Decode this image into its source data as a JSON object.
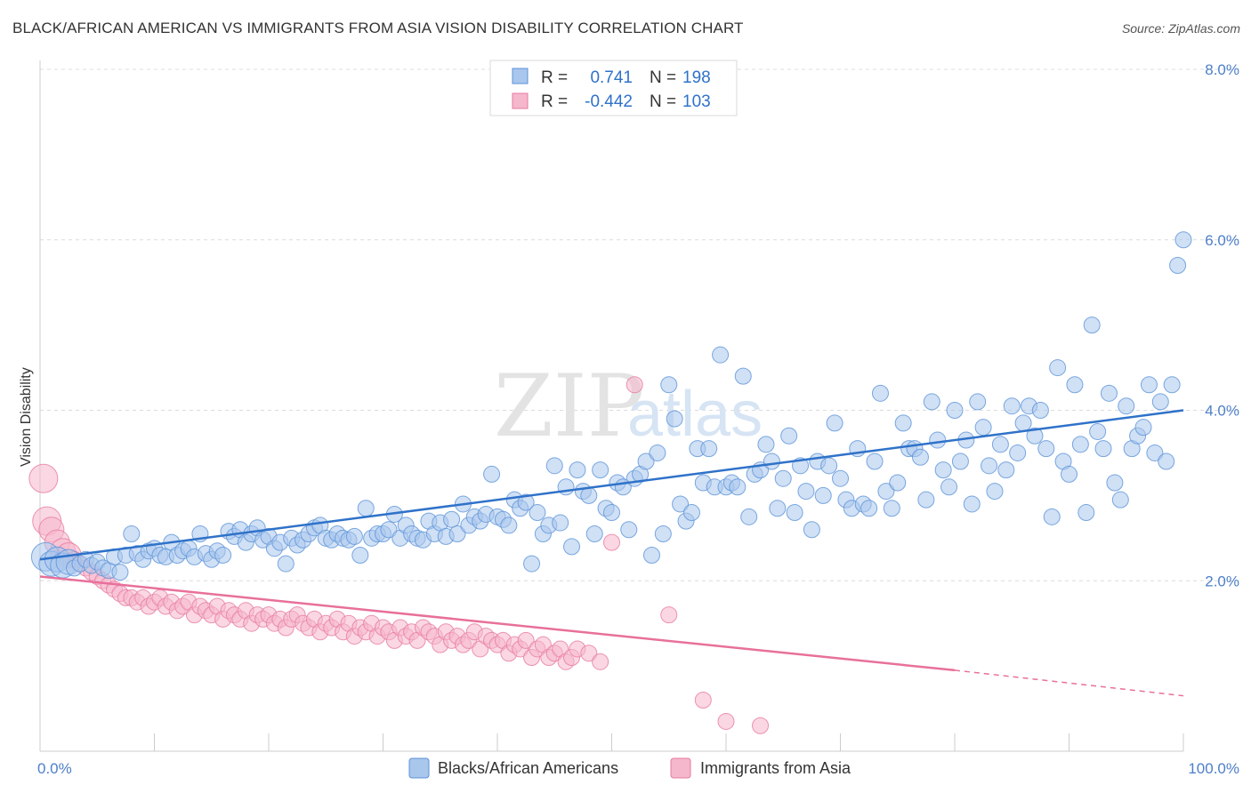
{
  "title": "BLACK/AFRICAN AMERICAN VS IMMIGRANTS FROM ASIA VISION DISABILITY CORRELATION CHART",
  "source": "Source: ZipAtlas.com",
  "watermark": {
    "zip": "ZIP",
    "atlas": "atlas"
  },
  "colors": {
    "blue": "#5b93d8",
    "blue_fill": "#a9c6ec",
    "blue_line": "#2f72c9",
    "pink": "#e77aa0",
    "pink_fill": "#f5b7cc",
    "pink_line": "#e8709a",
    "tick_text": "#4d7fc8"
  },
  "chart_data": {
    "type": "scatter",
    "title": "BLACK/AFRICAN AMERICAN VS IMMIGRANTS FROM ASIA VISION DISABILITY CORRELATION CHART",
    "xlabel": "",
    "ylabel": "Vision Disability",
    "xlim": [
      0,
      100
    ],
    "ylim": [
      0,
      8
    ],
    "x_tick_labels": [
      "0.0%",
      "100.0%"
    ],
    "y_ticks": [
      2,
      4,
      6,
      8
    ],
    "y_tick_labels": [
      "2.0%",
      "4.0%",
      "6.0%",
      "8.0%"
    ],
    "grid": true,
    "legend_top": {
      "r_label": "R =",
      "n_label": "N =",
      "entries": [
        {
          "r": "0.741",
          "n": "198"
        },
        {
          "r": "-0.442",
          "n": "103"
        }
      ]
    },
    "series": [
      {
        "name": "Blacks/African Americans",
        "color": "#5b93d8",
        "trend": {
          "x": [
            0,
            100
          ],
          "y": [
            2.25,
            4.0
          ]
        },
        "points": [
          [
            0.5,
            2.28
          ],
          [
            1,
            2.2
          ],
          [
            1.5,
            2.25
          ],
          [
            2,
            2.18
          ],
          [
            2.5,
            2.22
          ],
          [
            3,
            2.15
          ],
          [
            3.5,
            2.2
          ],
          [
            4,
            2.25
          ],
          [
            4.5,
            2.18
          ],
          [
            5,
            2.22
          ],
          [
            5.5,
            2.15
          ],
          [
            6,
            2.12
          ],
          [
            6.5,
            2.28
          ],
          [
            7,
            2.1
          ],
          [
            7.5,
            2.3
          ],
          [
            8,
            2.55
          ],
          [
            8.5,
            2.32
          ],
          [
            9,
            2.25
          ],
          [
            9.5,
            2.35
          ],
          [
            10,
            2.38
          ],
          [
            10.5,
            2.3
          ],
          [
            11,
            2.28
          ],
          [
            11.5,
            2.45
          ],
          [
            12,
            2.3
          ],
          [
            12.5,
            2.35
          ],
          [
            13,
            2.38
          ],
          [
            13.5,
            2.28
          ],
          [
            14,
            2.55
          ],
          [
            14.5,
            2.32
          ],
          [
            15,
            2.25
          ],
          [
            15.5,
            2.35
          ],
          [
            16,
            2.3
          ],
          [
            16.5,
            2.58
          ],
          [
            17,
            2.52
          ],
          [
            17.5,
            2.6
          ],
          [
            18,
            2.45
          ],
          [
            18.5,
            2.55
          ],
          [
            19,
            2.62
          ],
          [
            19.5,
            2.48
          ],
          [
            20,
            2.52
          ],
          [
            20.5,
            2.38
          ],
          [
            21,
            2.45
          ],
          [
            21.5,
            2.2
          ],
          [
            22,
            2.5
          ],
          [
            22.5,
            2.42
          ],
          [
            23,
            2.48
          ],
          [
            23.5,
            2.55
          ],
          [
            24,
            2.62
          ],
          [
            24.5,
            2.65
          ],
          [
            25,
            2.5
          ],
          [
            25.5,
            2.48
          ],
          [
            26,
            2.55
          ],
          [
            26.5,
            2.5
          ],
          [
            27,
            2.48
          ],
          [
            27.5,
            2.52
          ],
          [
            28,
            2.3
          ],
          [
            28.5,
            2.85
          ],
          [
            29,
            2.5
          ],
          [
            29.5,
            2.55
          ],
          [
            30,
            2.55
          ],
          [
            30.5,
            2.6
          ],
          [
            31,
            2.78
          ],
          [
            31.5,
            2.5
          ],
          [
            32,
            2.65
          ],
          [
            32.5,
            2.55
          ],
          [
            33,
            2.5
          ],
          [
            33.5,
            2.48
          ],
          [
            34,
            2.7
          ],
          [
            34.5,
            2.55
          ],
          [
            35,
            2.68
          ],
          [
            35.5,
            2.52
          ],
          [
            36,
            2.72
          ],
          [
            36.5,
            2.55
          ],
          [
            37,
            2.9
          ],
          [
            37.5,
            2.65
          ],
          [
            38,
            2.75
          ],
          [
            38.5,
            2.7
          ],
          [
            39,
            2.78
          ],
          [
            39.5,
            3.25
          ],
          [
            40,
            2.75
          ],
          [
            40.5,
            2.72
          ],
          [
            41,
            2.65
          ],
          [
            41.5,
            2.95
          ],
          [
            42,
            2.85
          ],
          [
            42.5,
            2.92
          ],
          [
            43,
            2.2
          ],
          [
            43.5,
            2.8
          ],
          [
            44,
            2.55
          ],
          [
            44.5,
            2.65
          ],
          [
            45,
            3.35
          ],
          [
            45.5,
            2.68
          ],
          [
            46,
            3.1
          ],
          [
            46.5,
            2.4
          ],
          [
            47,
            3.3
          ],
          [
            47.5,
            3.05
          ],
          [
            48,
            3.0
          ],
          [
            48.5,
            2.55
          ],
          [
            49,
            3.3
          ],
          [
            49.5,
            2.85
          ],
          [
            50,
            2.8
          ],
          [
            50.5,
            3.15
          ],
          [
            51,
            3.1
          ],
          [
            51.5,
            2.6
          ],
          [
            52,
            3.2
          ],
          [
            52.5,
            3.25
          ],
          [
            53,
            3.4
          ],
          [
            53.5,
            2.3
          ],
          [
            54,
            3.5
          ],
          [
            54.5,
            2.55
          ],
          [
            55,
            4.3
          ],
          [
            55.5,
            3.9
          ],
          [
            56,
            2.9
          ],
          [
            56.5,
            2.7
          ],
          [
            57,
            2.8
          ],
          [
            57.5,
            3.55
          ],
          [
            58,
            3.15
          ],
          [
            58.5,
            3.55
          ],
          [
            59,
            3.1
          ],
          [
            59.5,
            4.65
          ],
          [
            60,
            3.1
          ],
          [
            60.5,
            3.15
          ],
          [
            61,
            3.1
          ],
          [
            61.5,
            4.4
          ],
          [
            62,
            2.75
          ],
          [
            62.5,
            3.25
          ],
          [
            63,
            3.3
          ],
          [
            63.5,
            3.6
          ],
          [
            64,
            3.4
          ],
          [
            64.5,
            2.85
          ],
          [
            65,
            3.2
          ],
          [
            65.5,
            3.7
          ],
          [
            66,
            2.8
          ],
          [
            66.5,
            3.35
          ],
          [
            67,
            3.05
          ],
          [
            67.5,
            2.6
          ],
          [
            68,
            3.4
          ],
          [
            68.5,
            3.0
          ],
          [
            69,
            3.35
          ],
          [
            69.5,
            3.85
          ],
          [
            70,
            3.2
          ],
          [
            70.5,
            2.95
          ],
          [
            71,
            2.85
          ],
          [
            71.5,
            3.55
          ],
          [
            72,
            2.9
          ],
          [
            72.5,
            2.85
          ],
          [
            73,
            3.4
          ],
          [
            73.5,
            4.2
          ],
          [
            74,
            3.05
          ],
          [
            74.5,
            2.85
          ],
          [
            75,
            3.15
          ],
          [
            75.5,
            3.85
          ],
          [
            76,
            3.55
          ],
          [
            76.5,
            3.55
          ],
          [
            77,
            3.45
          ],
          [
            77.5,
            2.95
          ],
          [
            78,
            4.1
          ],
          [
            78.5,
            3.65
          ],
          [
            79,
            3.3
          ],
          [
            79.5,
            3.1
          ],
          [
            80,
            4.0
          ],
          [
            80.5,
            3.4
          ],
          [
            81,
            3.65
          ],
          [
            81.5,
            2.9
          ],
          [
            82,
            4.1
          ],
          [
            82.5,
            3.8
          ],
          [
            83,
            3.35
          ],
          [
            83.5,
            3.05
          ],
          [
            84,
            3.6
          ],
          [
            84.5,
            3.3
          ],
          [
            85,
            4.05
          ],
          [
            85.5,
            3.5
          ],
          [
            86,
            3.85
          ],
          [
            86.5,
            4.05
          ],
          [
            87,
            3.7
          ],
          [
            87.5,
            4.0
          ],
          [
            88,
            3.55
          ],
          [
            88.5,
            2.75
          ],
          [
            89,
            4.5
          ],
          [
            89.5,
            3.4
          ],
          [
            90,
            3.25
          ],
          [
            90.5,
            4.3
          ],
          [
            91,
            3.6
          ],
          [
            91.5,
            2.8
          ],
          [
            92,
            5.0
          ],
          [
            92.5,
            3.75
          ],
          [
            93,
            3.55
          ],
          [
            93.5,
            4.2
          ],
          [
            94,
            3.15
          ],
          [
            94.5,
            2.95
          ],
          [
            95,
            4.05
          ],
          [
            95.5,
            3.55
          ],
          [
            96,
            3.7
          ],
          [
            96.5,
            3.8
          ],
          [
            97,
            4.3
          ],
          [
            97.5,
            3.5
          ],
          [
            98,
            4.1
          ],
          [
            98.5,
            3.4
          ],
          [
            99,
            4.3
          ],
          [
            99.5,
            5.7
          ],
          [
            100,
            6.0
          ]
        ]
      },
      {
        "name": "Immigrants from Asia",
        "color": "#e77aa0",
        "trend": {
          "x": [
            0,
            80
          ],
          "y": [
            2.05,
            0.95
          ],
          "dash_to": {
            "x": 100,
            "y": 0.65
          }
        },
        "points": [
          [
            0.3,
            3.2
          ],
          [
            0.6,
            2.7
          ],
          [
            1,
            2.6
          ],
          [
            1.5,
            2.45
          ],
          [
            2,
            2.35
          ],
          [
            2.5,
            2.3
          ],
          [
            3,
            2.25
          ],
          [
            3.5,
            2.2
          ],
          [
            4,
            2.15
          ],
          [
            4.5,
            2.1
          ],
          [
            5,
            2.05
          ],
          [
            5.5,
            2.0
          ],
          [
            6,
            1.95
          ],
          [
            6.5,
            1.9
          ],
          [
            7,
            1.85
          ],
          [
            7.5,
            1.8
          ],
          [
            8,
            1.8
          ],
          [
            8.5,
            1.75
          ],
          [
            9,
            1.8
          ],
          [
            9.5,
            1.7
          ],
          [
            10,
            1.75
          ],
          [
            10.5,
            1.8
          ],
          [
            11,
            1.7
          ],
          [
            11.5,
            1.75
          ],
          [
            12,
            1.65
          ],
          [
            12.5,
            1.7
          ],
          [
            13,
            1.75
          ],
          [
            13.5,
            1.6
          ],
          [
            14,
            1.7
          ],
          [
            14.5,
            1.65
          ],
          [
            15,
            1.6
          ],
          [
            15.5,
            1.7
          ],
          [
            16,
            1.55
          ],
          [
            16.5,
            1.65
          ],
          [
            17,
            1.6
          ],
          [
            17.5,
            1.55
          ],
          [
            18,
            1.65
          ],
          [
            18.5,
            1.5
          ],
          [
            19,
            1.6
          ],
          [
            19.5,
            1.55
          ],
          [
            20,
            1.6
          ],
          [
            20.5,
            1.5
          ],
          [
            21,
            1.55
          ],
          [
            21.5,
            1.45
          ],
          [
            22,
            1.55
          ],
          [
            22.5,
            1.6
          ],
          [
            23,
            1.5
          ],
          [
            23.5,
            1.45
          ],
          [
            24,
            1.55
          ],
          [
            24.5,
            1.4
          ],
          [
            25,
            1.5
          ],
          [
            25.5,
            1.45
          ],
          [
            26,
            1.55
          ],
          [
            26.5,
            1.4
          ],
          [
            27,
            1.5
          ],
          [
            27.5,
            1.35
          ],
          [
            28,
            1.45
          ],
          [
            28.5,
            1.4
          ],
          [
            29,
            1.5
          ],
          [
            29.5,
            1.35
          ],
          [
            30,
            1.45
          ],
          [
            30.5,
            1.4
          ],
          [
            31,
            1.3
          ],
          [
            31.5,
            1.45
          ],
          [
            32,
            1.35
          ],
          [
            32.5,
            1.4
          ],
          [
            33,
            1.3
          ],
          [
            33.5,
            1.45
          ],
          [
            34,
            1.4
          ],
          [
            34.5,
            1.35
          ],
          [
            35,
            1.25
          ],
          [
            35.5,
            1.4
          ],
          [
            36,
            1.3
          ],
          [
            36.5,
            1.35
          ],
          [
            37,
            1.25
          ],
          [
            37.5,
            1.3
          ],
          [
            38,
            1.4
          ],
          [
            38.5,
            1.2
          ],
          [
            39,
            1.35
          ],
          [
            39.5,
            1.3
          ],
          [
            40,
            1.25
          ],
          [
            40.5,
            1.3
          ],
          [
            41,
            1.15
          ],
          [
            41.5,
            1.25
          ],
          [
            42,
            1.2
          ],
          [
            42.5,
            1.3
          ],
          [
            43,
            1.1
          ],
          [
            43.5,
            1.2
          ],
          [
            44,
            1.25
          ],
          [
            44.5,
            1.1
          ],
          [
            45,
            1.15
          ],
          [
            45.5,
            1.2
          ],
          [
            46,
            1.05
          ],
          [
            46.5,
            1.1
          ],
          [
            47,
            1.2
          ],
          [
            48,
            1.15
          ],
          [
            49,
            1.05
          ],
          [
            50,
            2.45
          ],
          [
            52,
            4.3
          ],
          [
            55,
            1.6
          ],
          [
            58,
            0.6
          ],
          [
            60,
            0.35
          ],
          [
            63,
            0.3
          ]
        ]
      }
    ]
  },
  "bottom_legend": {
    "items": [
      {
        "label": "Blacks/African Americans"
      },
      {
        "label": "Immigrants from Asia"
      }
    ]
  }
}
